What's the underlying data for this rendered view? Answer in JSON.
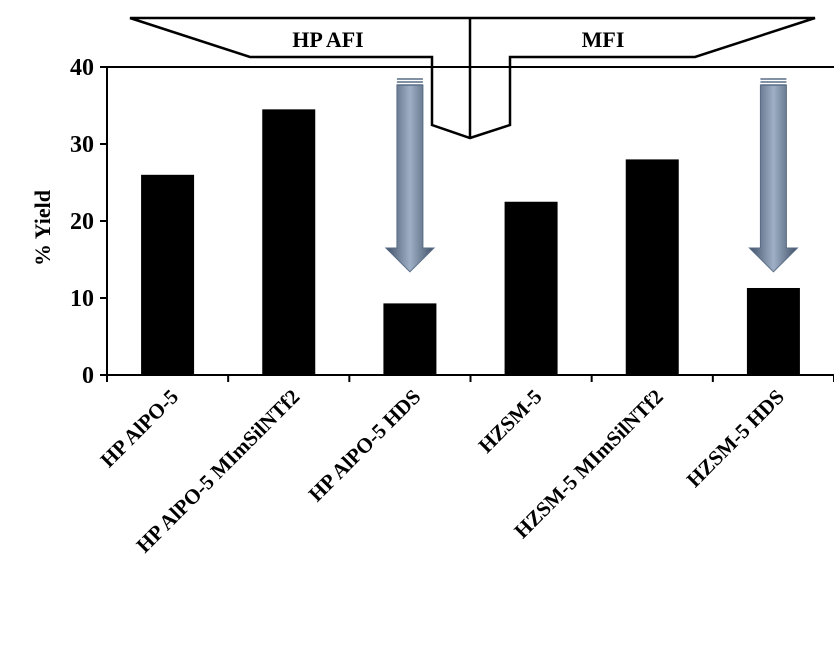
{
  "chart_data": {
    "type": "bar",
    "title": "",
    "xlabel": "",
    "ylabel": "% Yield",
    "ylim": [
      0,
      40
    ],
    "yticks": [
      0,
      10,
      20,
      30,
      40
    ],
    "grid": false,
    "categories": [
      "HP AlPO-5",
      "HP AlPO-5 MImSilNTf2",
      "HP AlPO-5 HDS",
      "HZSM-5",
      "HZSM-5 MImSilNTf2",
      "HZSM-5 HDS"
    ],
    "values": [
      26,
      34.5,
      9.3,
      22.5,
      28,
      11.3
    ],
    "bar_color": "#000000",
    "groups": [
      {
        "label": "HP AFI",
        "categories": [
          0,
          1,
          2
        ]
      },
      {
        "label": "MFI",
        "categories": [
          3,
          4,
          5
        ]
      }
    ],
    "annotations": [
      {
        "type": "down-arrow",
        "category": 2
      },
      {
        "type": "down-arrow",
        "category": 5
      }
    ],
    "arrow_color": "#5a6d86"
  }
}
